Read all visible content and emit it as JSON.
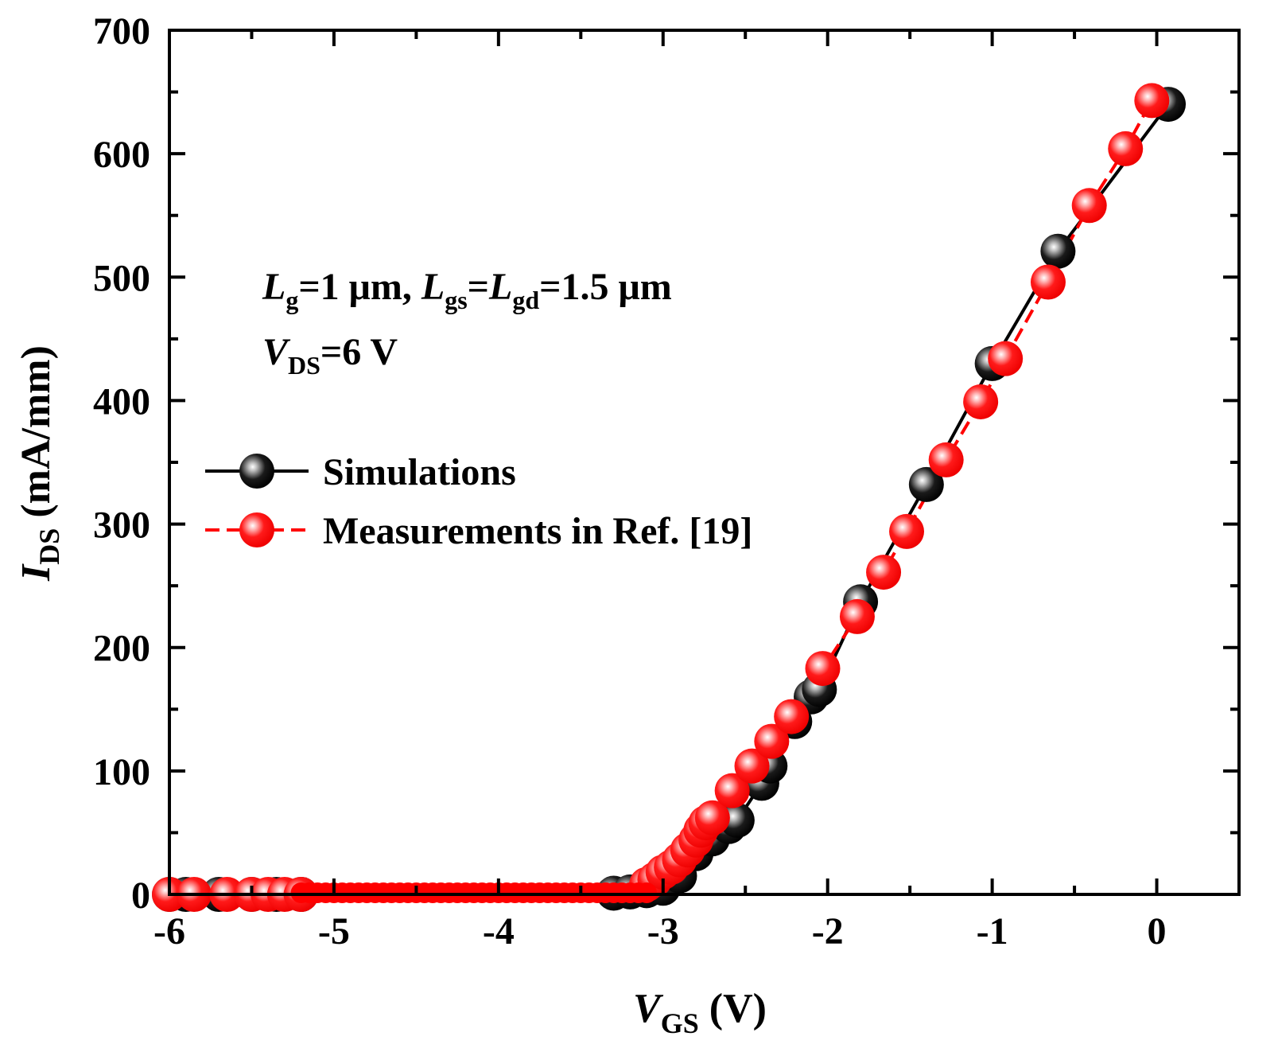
{
  "chart_data": {
    "type": "line",
    "xlabel": "V",
    "xlabel_sub": "GS",
    "xlabel_unit": "(V)",
    "ylabel": "I",
    "ylabel_sub": "DS",
    "ylabel_unit": "(mA/mm)",
    "xlim": [
      -6,
      0.5
    ],
    "ylim": [
      0,
      700
    ],
    "xticks": [
      -6,
      -5,
      -4,
      -3,
      -2,
      -1,
      0
    ],
    "xtick_labels": [
      "-6",
      "-5",
      "-4",
      "-3",
      "-2",
      "-1",
      "0"
    ],
    "yticks": [
      0,
      100,
      200,
      300,
      400,
      500,
      600,
      700
    ],
    "ytick_labels": [
      "0",
      "100",
      "200",
      "300",
      "400",
      "500",
      "600",
      "700"
    ],
    "grid": false,
    "legend_position": "middle-left",
    "annotation": {
      "line1": {
        "L": "L",
        "g": "g",
        "mid": "=1 μm, ",
        "L2": "L",
        "gs": "gs",
        "eq": "=",
        "L3": "L",
        "gd": "gd",
        "end": "=1.5 μm"
      },
      "line2": {
        "V": "V",
        "DS": "DS",
        "end": "=6 V"
      }
    },
    "series": [
      {
        "name": "Simulations",
        "color": "#000000",
        "highlight": "#ffffff",
        "dash": "solid",
        "x": [
          -6.0,
          -5.9,
          -5.7,
          -5.5,
          -5.35,
          -5.2,
          -3.3,
          -3.2,
          -3.1,
          -3.0,
          -2.9,
          -2.8,
          -2.7,
          -2.6,
          -2.55,
          -2.4,
          -2.35,
          -2.2,
          -2.1,
          -2.05,
          -1.8,
          -1.4,
          -1.0,
          -0.6,
          0.07
        ],
        "y": [
          0,
          0,
          0,
          0,
          0,
          0,
          1,
          2,
          3,
          5,
          15,
          33,
          45,
          55,
          60,
          90,
          104,
          140,
          160,
          166,
          237,
          332,
          430,
          521,
          640
        ]
      },
      {
        "name": "Measurements in Ref. [19]",
        "color": "#ff0000",
        "highlight": "#ffffff",
        "dash": "dashed",
        "x": [
          -6.0,
          -5.85,
          -5.65,
          -5.5,
          -5.4,
          -5.3,
          -5.2,
          -3.1,
          -3.05,
          -3.0,
          -2.95,
          -2.9,
          -2.85,
          -2.8,
          -2.77,
          -2.74,
          -2.7,
          -2.58,
          -2.46,
          -2.34,
          -2.22,
          -2.03,
          -1.82,
          -1.66,
          -1.52,
          -1.28,
          -1.07,
          -0.92,
          -0.66,
          -0.41,
          -0.19,
          -0.03
        ],
        "y": [
          0,
          0,
          0,
          0,
          0,
          0,
          0,
          8,
          12,
          18,
          22,
          28,
          36,
          44,
          52,
          58,
          62,
          84,
          104,
          124,
          144,
          183,
          225,
          261,
          294,
          352,
          399,
          434,
          496,
          558,
          604,
          643
        ]
      }
    ]
  }
}
